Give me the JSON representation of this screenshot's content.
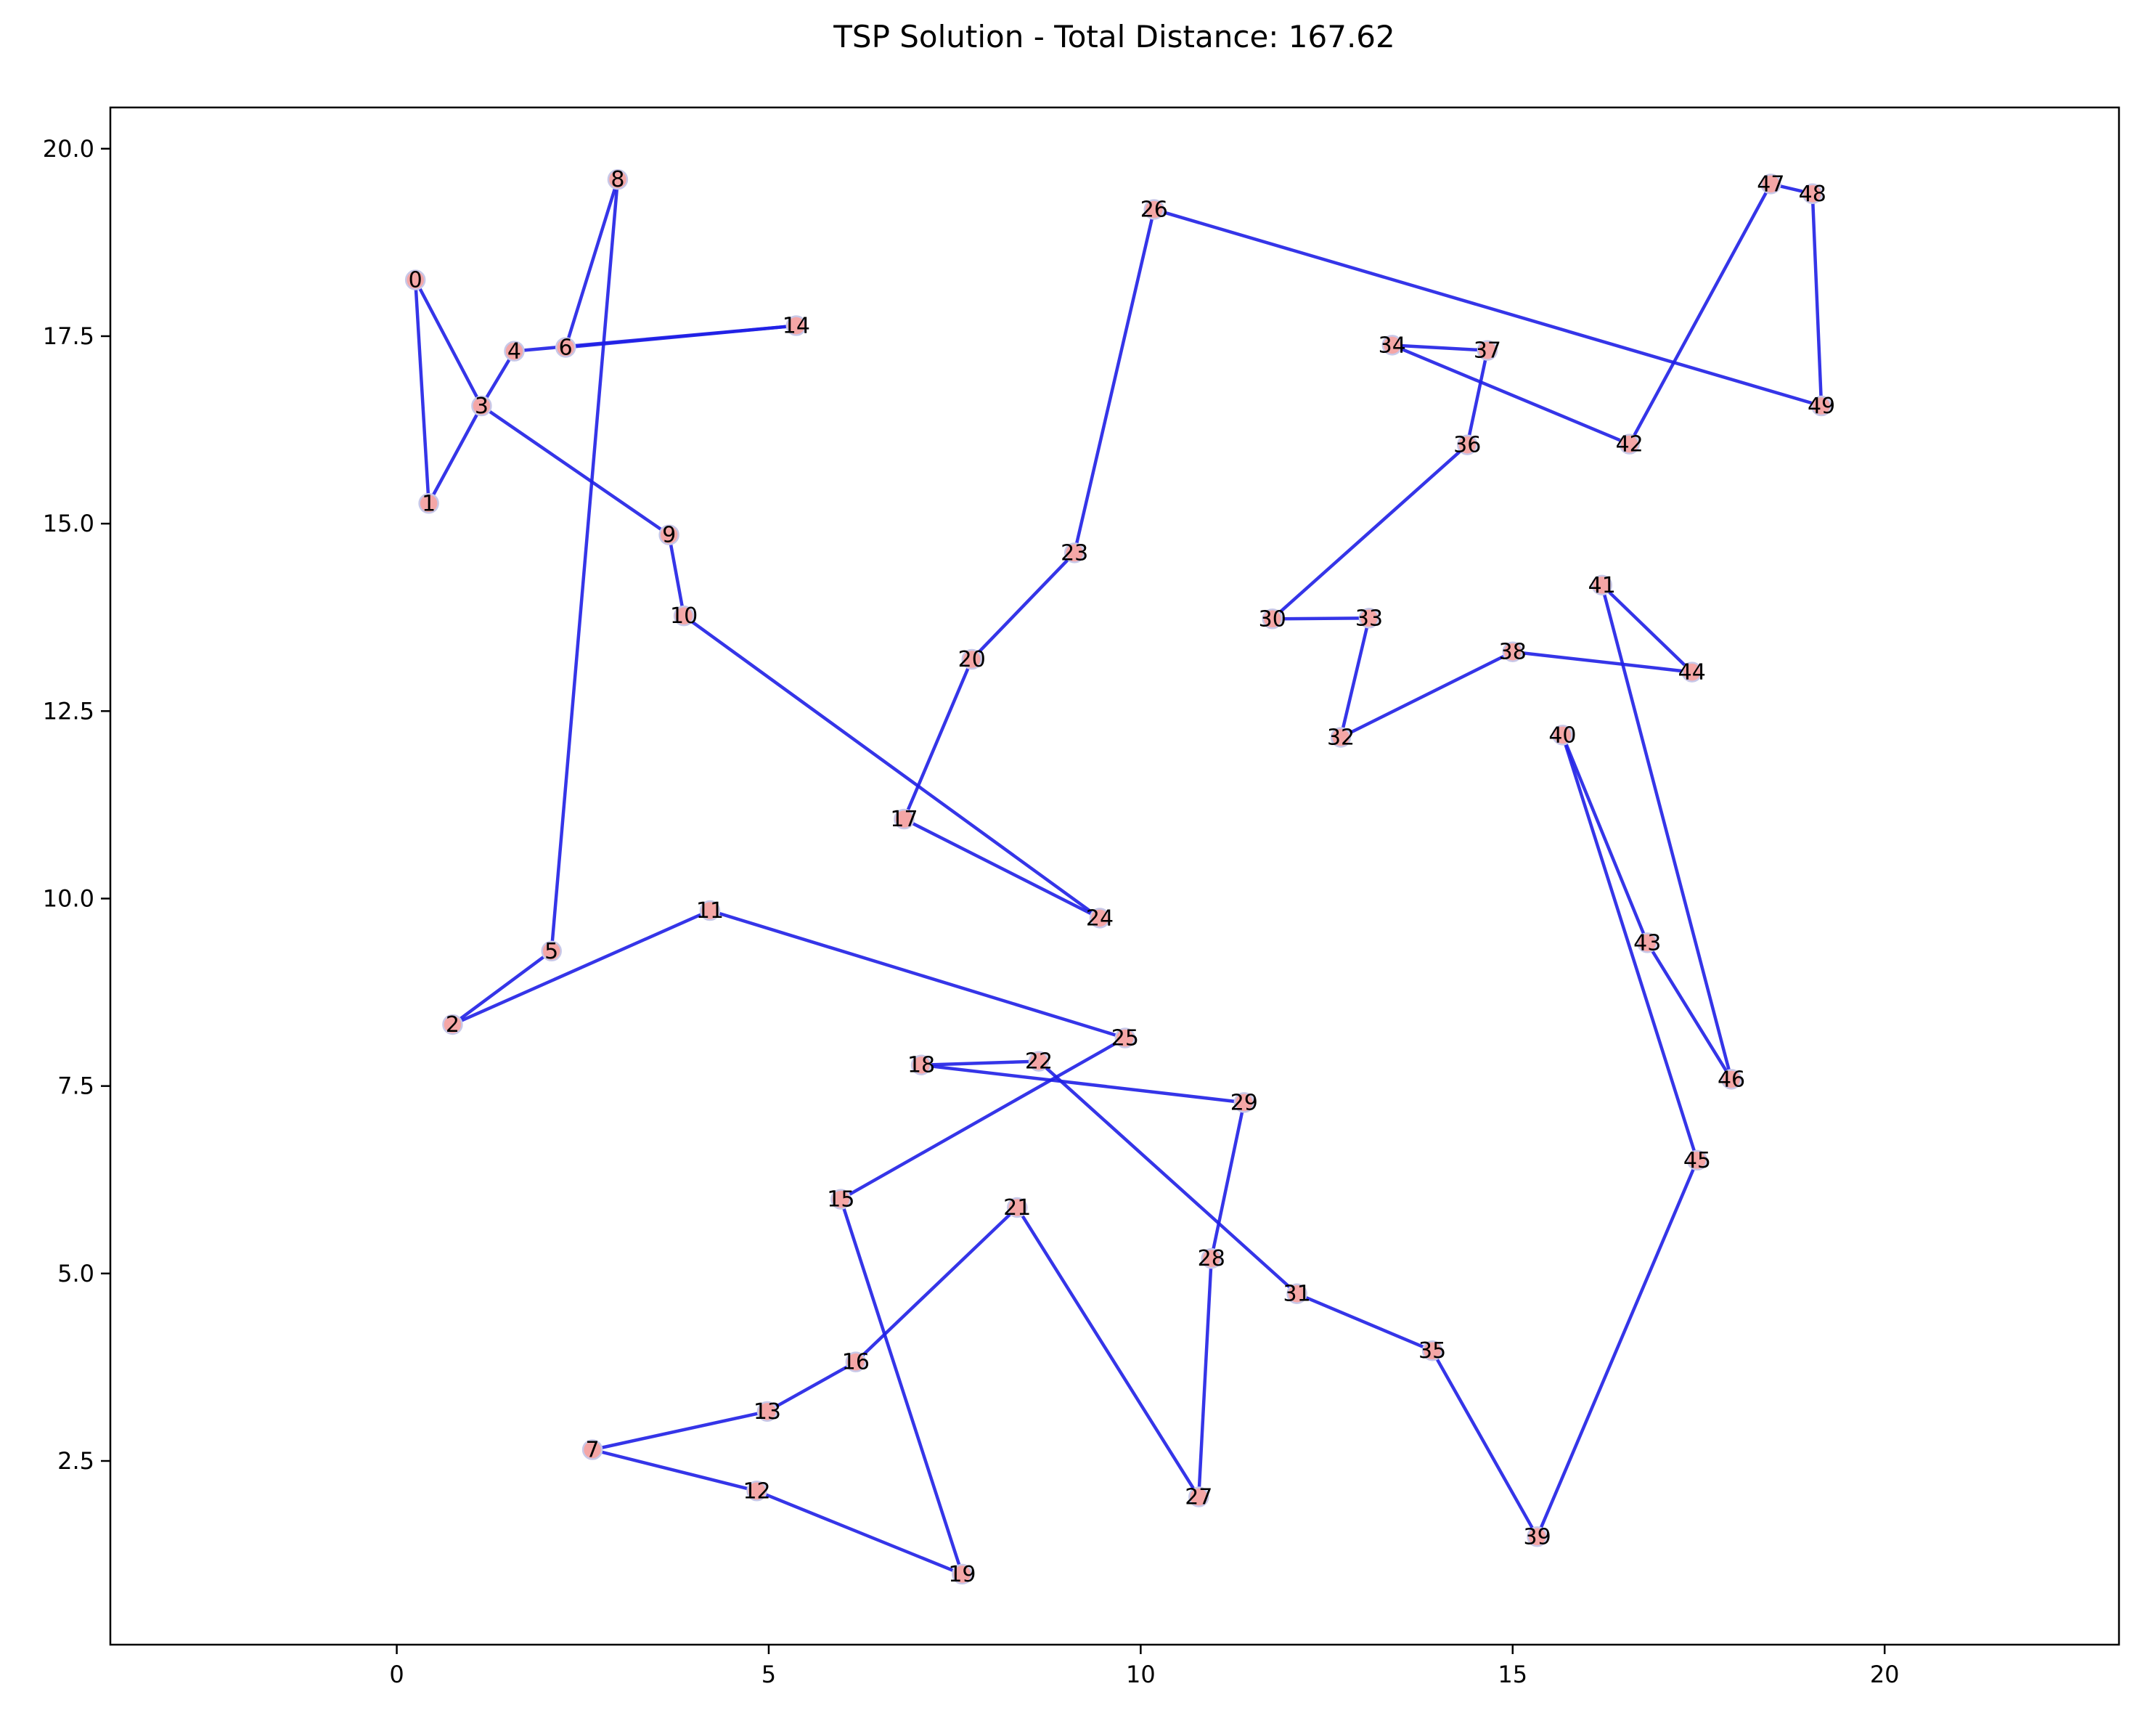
{
  "chart_data": {
    "type": "line",
    "title": "TSP Solution - Total Distance: 167.62",
    "xlabel": "",
    "ylabel": "",
    "xlim": [
      -3.85,
      23.15
    ],
    "ylim": [
      0.05,
      20.55
    ],
    "xticks": [
      0,
      5,
      10,
      15,
      20
    ],
    "xtick_labels": [
      "0",
      "5",
      "10",
      "15",
      "20"
    ],
    "yticks": [
      2.5,
      5.0,
      7.5,
      10.0,
      12.5,
      15.0,
      17.5,
      20.0
    ],
    "ytick_labels": [
      "2.5",
      "5.0",
      "7.5",
      "10.0",
      "12.5",
      "15.0",
      "17.5",
      "20.0"
    ],
    "grid": false,
    "colors": {
      "route": "#1f1fe6",
      "node_fill": "#f4a6a6",
      "node_edge": "#c8c8e8"
    },
    "nodes": [
      {
        "id": "0",
        "x": 0.25,
        "y": 18.25
      },
      {
        "id": "1",
        "x": 0.43,
        "y": 15.27
      },
      {
        "id": "2",
        "x": 0.75,
        "y": 8.32
      },
      {
        "id": "3",
        "x": 1.14,
        "y": 16.57
      },
      {
        "id": "4",
        "x": 1.58,
        "y": 17.3
      },
      {
        "id": "5",
        "x": 2.08,
        "y": 9.3
      },
      {
        "id": "6",
        "x": 2.27,
        "y": 17.35
      },
      {
        "id": "7",
        "x": 2.63,
        "y": 2.65
      },
      {
        "id": "8",
        "x": 2.97,
        "y": 19.59
      },
      {
        "id": "9",
        "x": 3.66,
        "y": 14.85
      },
      {
        "id": "10",
        "x": 3.86,
        "y": 13.77
      },
      {
        "id": "11",
        "x": 4.21,
        "y": 9.84
      },
      {
        "id": "12",
        "x": 4.84,
        "y": 2.1
      },
      {
        "id": "13",
        "x": 4.98,
        "y": 3.16
      },
      {
        "id": "14",
        "x": 5.37,
        "y": 17.64
      },
      {
        "id": "15",
        "x": 5.97,
        "y": 5.99
      },
      {
        "id": "16",
        "x": 6.17,
        "y": 3.82
      },
      {
        "id": "17",
        "x": 6.82,
        "y": 11.06
      },
      {
        "id": "18",
        "x": 7.05,
        "y": 7.78
      },
      {
        "id": "19",
        "x": 7.6,
        "y": 0.99
      },
      {
        "id": "20",
        "x": 7.73,
        "y": 13.19
      },
      {
        "id": "21",
        "x": 8.34,
        "y": 5.88
      },
      {
        "id": "22",
        "x": 8.63,
        "y": 7.83
      },
      {
        "id": "23",
        "x": 9.11,
        "y": 14.61
      },
      {
        "id": "24",
        "x": 9.45,
        "y": 9.74
      },
      {
        "id": "25",
        "x": 9.79,
        "y": 8.14
      },
      {
        "id": "26",
        "x": 10.18,
        "y": 19.19
      },
      {
        "id": "27",
        "x": 10.78,
        "y": 2.02
      },
      {
        "id": "28",
        "x": 10.95,
        "y": 5.2
      },
      {
        "id": "29",
        "x": 11.39,
        "y": 7.28
      },
      {
        "id": "30",
        "x": 11.77,
        "y": 13.73
      },
      {
        "id": "31",
        "x": 12.1,
        "y": 4.73
      },
      {
        "id": "32",
        "x": 12.69,
        "y": 12.15
      },
      {
        "id": "33",
        "x": 13.07,
        "y": 13.74
      },
      {
        "id": "34",
        "x": 13.38,
        "y": 17.38
      },
      {
        "id": "35",
        "x": 13.92,
        "y": 3.97
      },
      {
        "id": "36",
        "x": 14.39,
        "y": 16.05
      },
      {
        "id": "37",
        "x": 14.66,
        "y": 17.31
      },
      {
        "id": "38",
        "x": 15.0,
        "y": 13.29
      },
      {
        "id": "39",
        "x": 15.33,
        "y": 1.49
      },
      {
        "id": "40",
        "x": 15.67,
        "y": 12.18
      },
      {
        "id": "41",
        "x": 16.2,
        "y": 14.18
      },
      {
        "id": "42",
        "x": 16.57,
        "y": 16.06
      },
      {
        "id": "43",
        "x": 16.81,
        "y": 9.41
      },
      {
        "id": "44",
        "x": 17.41,
        "y": 13.02
      },
      {
        "id": "45",
        "x": 17.48,
        "y": 6.51
      },
      {
        "id": "46",
        "x": 17.94,
        "y": 7.59
      },
      {
        "id": "47",
        "x": 18.47,
        "y": 19.53
      },
      {
        "id": "48",
        "x": 19.03,
        "y": 19.4
      },
      {
        "id": "49",
        "x": 19.15,
        "y": 16.57
      }
    ],
    "tour": [
      0,
      1,
      3,
      9,
      10,
      24,
      17,
      20,
      23,
      26,
      49,
      48,
      47,
      42,
      34,
      37,
      36,
      30,
      33,
      32,
      38,
      44,
      41,
      46,
      43,
      40,
      45,
      39,
      35,
      31,
      22,
      18,
      29,
      28,
      27,
      21,
      16,
      13,
      7,
      12,
      19,
      15,
      25,
      11,
      2,
      5,
      8,
      6,
      14,
      4,
      3,
      0
    ]
  }
}
